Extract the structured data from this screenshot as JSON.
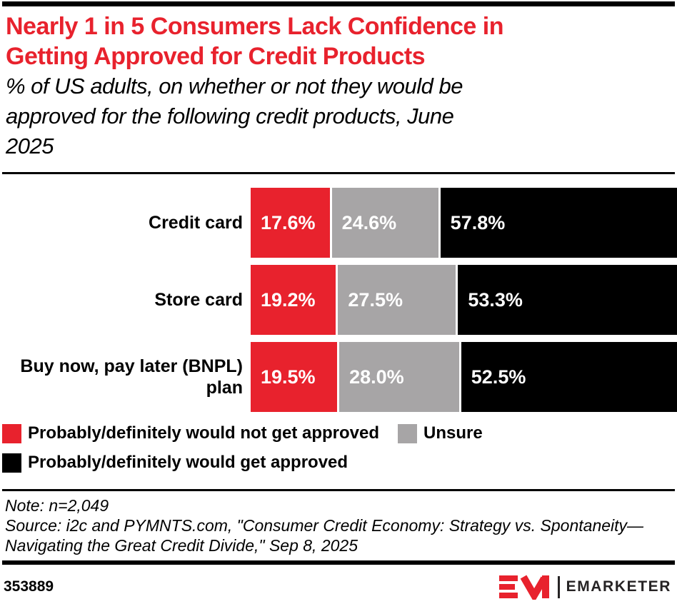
{
  "header": {
    "title_lines": [
      "Nearly 1 in 5 Consumers Lack Confidence in",
      "Getting Approved for Credit Products"
    ],
    "subtitle_lines": [
      "% of US adults, on whether or not they would be",
      "approved for the following credit products, June",
      "2025"
    ]
  },
  "colors": {
    "title_red": "#e8222d",
    "bar_red": "#e8222d",
    "bar_gray": "#a7a5a6",
    "bar_black": "#000000",
    "rule_black": "#000000"
  },
  "chart_data": {
    "type": "bar",
    "orientation": "horizontal",
    "stacked": true,
    "unit": "%",
    "xlim": [
      0,
      100
    ],
    "grid": false,
    "legend_position": "bottom",
    "categories": [
      "Credit card",
      "Store card",
      "Buy now, pay later (BNPL) plan"
    ],
    "series": [
      {
        "name": "Probably/definitely would not get approved",
        "color": "#e8222d",
        "values": [
          17.6,
          19.2,
          19.5
        ],
        "labels": [
          "17.6%",
          "19.2%",
          "19.5%"
        ]
      },
      {
        "name": "Unsure",
        "color": "#a7a5a6",
        "values": [
          24.6,
          27.5,
          28.0
        ],
        "labels": [
          "24.6%",
          "27.5%",
          "28.0%"
        ]
      },
      {
        "name": "Probably/definitely would get approved",
        "color": "#000000",
        "values": [
          57.8,
          53.3,
          52.5
        ],
        "labels": [
          "57.8%",
          "53.3%",
          "52.5%"
        ]
      }
    ]
  },
  "legend": {
    "items": [
      {
        "label": "Probably/definitely would not get approved",
        "color": "#e8222d"
      },
      {
        "label": "Unsure",
        "color": "#a7a5a6"
      },
      {
        "label": "Probably/definitely would get approved",
        "color": "#000000"
      }
    ]
  },
  "notes": {
    "note_line": "Note: n=2,049",
    "source_lines": [
      "Source: i2c and PYMNTS.com, \"Consumer Credit Economy: Strategy vs. Spontaneity—",
      "Navigating the Great Credit Divide,\" Sep 8, 2025"
    ]
  },
  "footer": {
    "chart_id": "353889",
    "brand_name": "EMARKETER",
    "brand_mark": "EM-monogram",
    "brand_red": "#e8222d"
  }
}
